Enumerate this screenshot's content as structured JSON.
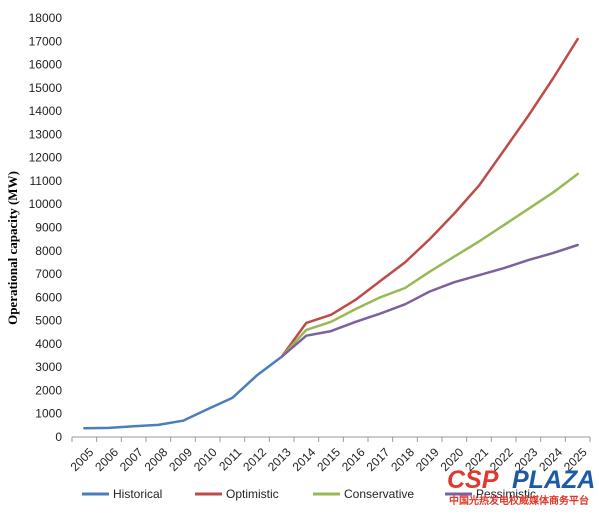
{
  "chart_data": {
    "type": "line",
    "title": "",
    "xlabel": "",
    "ylabel": "Operational capacity (MW)",
    "x": [
      "2005",
      "2006",
      "2007",
      "2008",
      "2009",
      "2010",
      "2011",
      "2012",
      "2013",
      "2014",
      "2015",
      "2016",
      "2017",
      "2018",
      "2019",
      "2020",
      "2021",
      "2022",
      "2023",
      "2024",
      "2025"
    ],
    "ylim": [
      0,
      18000
    ],
    "yticks": [
      0,
      1000,
      2000,
      3000,
      4000,
      5000,
      6000,
      7000,
      8000,
      9000,
      10000,
      11000,
      12000,
      13000,
      14000,
      15000,
      16000,
      17000,
      18000
    ],
    "grid": false,
    "legend_position": "bottom",
    "series": [
      {
        "name": "Historical",
        "color": "#4a7ebb",
        "values": [
          380,
          390,
          460,
          520,
          700,
          1200,
          1680,
          2650,
          3450,
          null,
          null,
          null,
          null,
          null,
          null,
          null,
          null,
          null,
          null,
          null,
          null
        ]
      },
      {
        "name": "Optimistic",
        "color": "#be4b48",
        "values": [
          null,
          null,
          null,
          null,
          null,
          null,
          null,
          null,
          3450,
          4900,
          5250,
          5900,
          6700,
          7500,
          8500,
          9600,
          10800,
          12300,
          13800,
          15400,
          17100
        ]
      },
      {
        "name": "Conservative",
        "color": "#98b954",
        "values": [
          null,
          null,
          null,
          null,
          null,
          null,
          null,
          null,
          3450,
          4600,
          4950,
          5500,
          6000,
          6400,
          7100,
          7750,
          8400,
          9100,
          9800,
          10500,
          11300
        ]
      },
      {
        "name": "Pessimistic",
        "color": "#7d60a0",
        "values": [
          null,
          null,
          null,
          null,
          null,
          null,
          null,
          null,
          3450,
          4350,
          4550,
          4950,
          5300,
          5700,
          6250,
          6650,
          6950,
          7250,
          7600,
          7900,
          8250
        ]
      }
    ]
  },
  "watermark": {
    "brand_left": "CSP",
    "brand_right": "PLAZA",
    "brand_left_color": "#e03a2e",
    "brand_right_color": "#1c5aa6",
    "tagline": "中国光热发电权威媒体商务平台",
    "tagline_color": "#e03a2e"
  }
}
